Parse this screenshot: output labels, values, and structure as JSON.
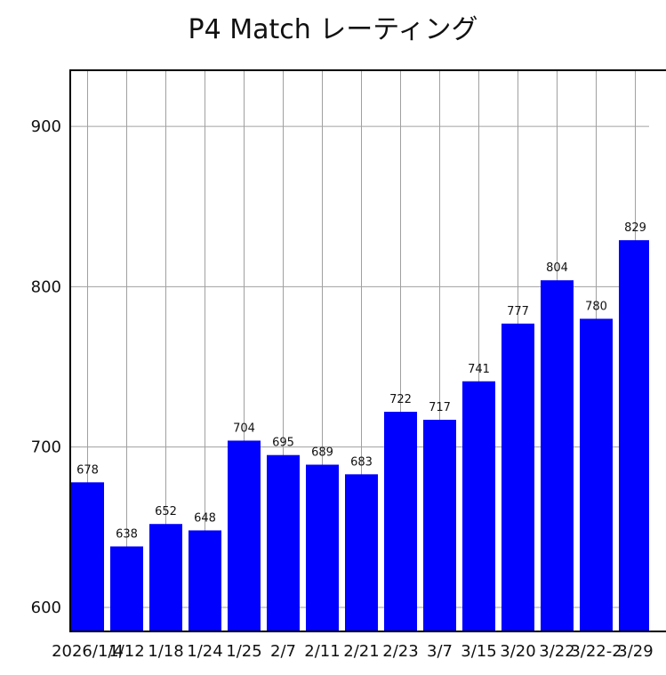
{
  "chart_data": {
    "type": "bar",
    "title": "P4 Match レーティング",
    "xlabel": "",
    "ylabel": "",
    "categories": [
      "2026/1/4",
      "1/12",
      "1/18",
      "1/24",
      "1/25",
      "2/7",
      "2/11",
      "2/21",
      "2/23",
      "3/7",
      "3/15",
      "3/20",
      "3/22",
      "3/22-2",
      "3/29"
    ],
    "values": [
      678,
      638,
      652,
      648,
      704,
      695,
      689,
      683,
      722,
      717,
      741,
      777,
      804,
      780,
      829
    ],
    "ylim": [
      585,
      935
    ],
    "yticks": [
      600,
      700,
      800,
      900
    ],
    "grid": true,
    "bar_color": "#0000ff",
    "show_value_labels": true
  }
}
